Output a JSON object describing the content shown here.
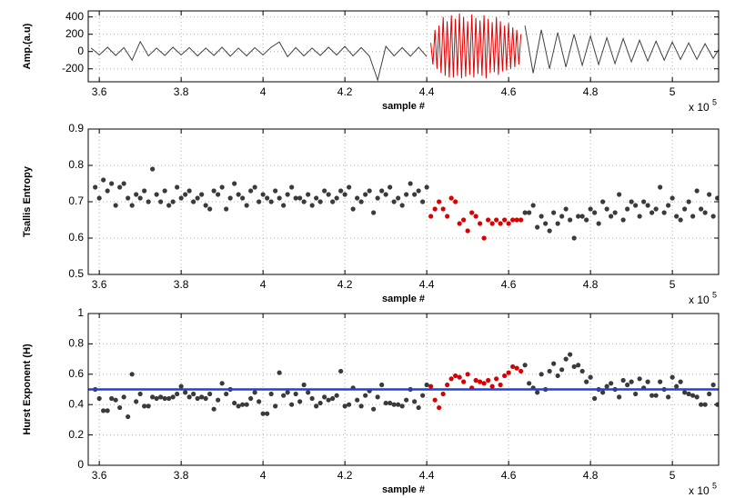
{
  "chart_data": [
    {
      "type": "line",
      "ylabel": "Amp.(a.u)",
      "xlabel": "sample #",
      "x_multiplier": "x 10",
      "x_multiplier_exp": "5",
      "xlim": [
        357300,
        511300
      ],
      "xticks": [
        {
          "value": 360000,
          "label": "3.6"
        },
        {
          "value": 380000,
          "label": "3.8"
        },
        {
          "value": 400000,
          "label": "4"
        },
        {
          "value": 420000,
          "label": "4.2"
        },
        {
          "value": 440000,
          "label": "4.4"
        },
        {
          "value": 460000,
          "label": "4.6"
        },
        {
          "value": 480000,
          "label": "4.8"
        },
        {
          "value": 500000,
          "label": "5"
        }
      ],
      "ylim": [
        -350,
        470
      ],
      "yticks": [
        -200,
        0,
        200,
        400
      ],
      "grid": true,
      "series": [
        {
          "color": "#404040",
          "x": [
            358000,
            360000,
            362000,
            364000,
            366000,
            368000,
            370000,
            372000,
            374000,
            376000,
            378000,
            380000,
            382000,
            384000,
            386000,
            388000,
            390000,
            392000,
            394000,
            396000,
            398000,
            400000,
            402000,
            404000,
            406000,
            408000,
            410000,
            412000,
            414000,
            416000,
            418000,
            420000,
            422000,
            424000,
            426000,
            428000,
            430000,
            432000,
            434000,
            436000,
            438000,
            440000,
            442000,
            444000,
            446000,
            448000,
            450000,
            452000,
            454000,
            456000,
            458000,
            460000,
            462000,
            464000,
            466000,
            468000,
            470000,
            472000,
            474000,
            476000,
            478000,
            480000,
            482000,
            484000,
            486000,
            488000,
            490000,
            492000,
            494000,
            496000,
            498000,
            500000,
            502000,
            504000,
            506000,
            508000,
            510000,
            512000
          ],
          "values": [
            40,
            -40,
            50,
            -45,
            45,
            -100,
            115,
            -50,
            40,
            -45,
            50,
            -40,
            45,
            -50,
            40,
            -45,
            50,
            -55,
            40,
            -50,
            45,
            -40,
            50,
            110,
            -60,
            45,
            -50,
            40,
            -45,
            50,
            -40,
            60,
            -50,
            45,
            -55,
            -330,
            60,
            -50,
            45,
            -55,
            50,
            -60,
            null,
            null,
            null,
            null,
            null,
            null,
            null,
            null,
            null,
            null,
            null,
            300,
            -250,
            250,
            -200,
            220,
            -180,
            200,
            -160,
            180,
            -150,
            160,
            -140,
            150,
            -120,
            130,
            -110,
            120,
            -100,
            110,
            -90,
            100,
            -90,
            90,
            -80,
            80
          ]
        },
        {
          "color": "#e00000",
          "x": [
            441000,
            441500,
            442000,
            442500,
            443000,
            443500,
            444000,
            444500,
            445000,
            445500,
            446000,
            446500,
            447000,
            447500,
            448000,
            448500,
            449000,
            449500,
            450000,
            450500,
            451000,
            451500,
            452000,
            452500,
            453000,
            453500,
            454000,
            454500,
            455000,
            455500,
            456000,
            456500,
            457000,
            457500,
            458000,
            458500,
            459000,
            459500,
            460000,
            460500,
            461000,
            461500,
            462000,
            462500,
            463000
          ],
          "values": [
            100,
            -150,
            250,
            -200,
            300,
            -250,
            400,
            -280,
            350,
            -300,
            420,
            -300,
            380,
            -280,
            440,
            -310,
            400,
            -290,
            350,
            -270,
            430,
            -300,
            390,
            -260,
            360,
            -280,
            420,
            -310,
            380,
            -250,
            340,
            -240,
            400,
            -270,
            350,
            -230,
            300,
            -220,
            330,
            -200,
            280,
            -180,
            250,
            -150,
            200
          ]
        }
      ]
    },
    {
      "type": "scatter",
      "ylabel": "Tsallis Entropy",
      "xlabel": "sample #",
      "x_multiplier": "x 10",
      "x_multiplier_exp": "5",
      "xlim": [
        357300,
        511300
      ],
      "xticks": [
        {
          "value": 360000,
          "label": "3.6"
        },
        {
          "value": 380000,
          "label": "3.8"
        },
        {
          "value": 400000,
          "label": "4"
        },
        {
          "value": 420000,
          "label": "4.2"
        },
        {
          "value": 440000,
          "label": "4.4"
        },
        {
          "value": 460000,
          "label": "4.6"
        },
        {
          "value": 480000,
          "label": "4.8"
        },
        {
          "value": 500000,
          "label": "5"
        }
      ],
      "ylim": [
        0.5,
        0.9
      ],
      "yticks": [
        0.5,
        0.6,
        0.7,
        0.8,
        0.9
      ],
      "grid": true,
      "color": "#3a3a3a",
      "highlight": {
        "xlim": [
          441000,
          463000
        ],
        "color": "#d80000"
      },
      "x": [
        359000,
        360000,
        361000,
        362000,
        363000,
        364000,
        365000,
        366000,
        367000,
        368000,
        369000,
        370000,
        371000,
        372000,
        373000,
        374000,
        375000,
        376000,
        377000,
        378000,
        379000,
        380000,
        381000,
        382000,
        383000,
        384000,
        385000,
        386000,
        387000,
        388000,
        389000,
        390000,
        391000,
        392000,
        393000,
        394000,
        395000,
        396000,
        397000,
        398000,
        399000,
        400000,
        401000,
        402000,
        403000,
        404000,
        405000,
        406000,
        407000,
        408000,
        409000,
        410000,
        411000,
        412000,
        413000,
        414000,
        415000,
        416000,
        417000,
        418000,
        419000,
        420000,
        421000,
        422000,
        423000,
        424000,
        425000,
        426000,
        427000,
        428000,
        429000,
        430000,
        431000,
        432000,
        433000,
        434000,
        435000,
        436000,
        437000,
        438000,
        439000,
        440000,
        441000,
        442000,
        443000,
        444000,
        445000,
        446000,
        447000,
        448000,
        449000,
        450000,
        451000,
        452000,
        453000,
        454000,
        455000,
        456000,
        457000,
        458000,
        459000,
        460000,
        461000,
        462000,
        463000,
        464000,
        465000,
        466000,
        467000,
        468000,
        469000,
        470000,
        471000,
        472000,
        473000,
        474000,
        475000,
        476000,
        477000,
        478000,
        479000,
        480000,
        481000,
        482000,
        483000,
        484000,
        485000,
        486000,
        487000,
        488000,
        489000,
        490000,
        491000,
        492000,
        493000,
        494000,
        495000,
        496000,
        497000,
        498000,
        499000,
        500000,
        501000,
        502000,
        503000,
        504000,
        505000,
        506000,
        507000,
        508000,
        509000,
        510000,
        511000
      ],
      "values": [
        0.74,
        0.71,
        0.76,
        0.73,
        0.75,
        0.69,
        0.74,
        0.75,
        0.71,
        0.69,
        0.72,
        0.71,
        0.73,
        0.7,
        0.79,
        0.72,
        0.7,
        0.73,
        0.69,
        0.7,
        0.74,
        0.71,
        0.72,
        0.73,
        0.7,
        0.71,
        0.72,
        0.69,
        0.68,
        0.73,
        0.72,
        0.74,
        0.68,
        0.71,
        0.75,
        0.72,
        0.71,
        0.69,
        0.73,
        0.74,
        0.7,
        0.72,
        0.71,
        0.7,
        0.73,
        0.71,
        0.69,
        0.72,
        0.74,
        0.71,
        0.71,
        0.7,
        0.72,
        0.69,
        0.71,
        0.7,
        0.73,
        0.72,
        0.7,
        0.71,
        0.73,
        0.72,
        0.74,
        0.68,
        0.71,
        0.7,
        0.72,
        0.73,
        0.67,
        0.71,
        0.73,
        0.72,
        0.74,
        0.7,
        0.71,
        0.69,
        0.72,
        0.75,
        0.72,
        0.73,
        0.7,
        0.74,
        0.66,
        0.68,
        0.7,
        0.68,
        0.66,
        0.71,
        0.7,
        0.64,
        0.65,
        0.62,
        0.67,
        0.66,
        0.64,
        0.6,
        0.65,
        0.64,
        0.65,
        0.64,
        0.65,
        0.64,
        0.65,
        0.65,
        0.65,
        0.67,
        0.67,
        0.69,
        0.63,
        0.66,
        0.64,
        0.62,
        0.67,
        0.64,
        0.66,
        0.68,
        0.65,
        0.6,
        0.66,
        0.66,
        0.65,
        0.68,
        0.67,
        0.64,
        0.7,
        0.68,
        0.66,
        0.67,
        0.72,
        0.65,
        0.68,
        0.7,
        0.69,
        0.66,
        0.7,
        0.69,
        0.67,
        0.68,
        0.74,
        0.67,
        0.69,
        0.71,
        0.66,
        0.65,
        0.68,
        0.7,
        0.66,
        0.73,
        0.68,
        0.67,
        0.72,
        0.66,
        0.71
      ]
    },
    {
      "type": "scatter",
      "ylabel": "Hurst Exponent (H)",
      "xlabel": "sample #",
      "x_multiplier": "x 10",
      "x_multiplier_exp": "5",
      "xlim": [
        357300,
        511300
      ],
      "xticks": [
        {
          "value": 360000,
          "label": "3.6"
        },
        {
          "value": 380000,
          "label": "3.8"
        },
        {
          "value": 400000,
          "label": "4"
        },
        {
          "value": 420000,
          "label": "4.2"
        },
        {
          "value": 440000,
          "label": "4.4"
        },
        {
          "value": 460000,
          "label": "4.6"
        },
        {
          "value": 480000,
          "label": "4.8"
        },
        {
          "value": 500000,
          "label": "5"
        }
      ],
      "ylim": [
        0,
        1
      ],
      "yticks": [
        0,
        0.2,
        0.4,
        0.6,
        0.8,
        1
      ],
      "grid": true,
      "color": "#3a3a3a",
      "highlight": {
        "xlim": [
          441000,
          463000
        ],
        "color": "#d80000"
      },
      "hline": {
        "value": 0.5,
        "color": "#2040e0"
      },
      "x": [
        359000,
        360000,
        361000,
        362000,
        363000,
        364000,
        365000,
        366000,
        367000,
        368000,
        369000,
        370000,
        371000,
        372000,
        373000,
        374000,
        375000,
        376000,
        377000,
        378000,
        379000,
        380000,
        381000,
        382000,
        383000,
        384000,
        385000,
        386000,
        387000,
        388000,
        389000,
        390000,
        391000,
        392000,
        393000,
        394000,
        395000,
        396000,
        397000,
        398000,
        399000,
        400000,
        401000,
        402000,
        403000,
        404000,
        405000,
        406000,
        407000,
        408000,
        409000,
        410000,
        411000,
        412000,
        413000,
        414000,
        415000,
        416000,
        417000,
        418000,
        419000,
        420000,
        421000,
        422000,
        423000,
        424000,
        425000,
        426000,
        427000,
        428000,
        429000,
        430000,
        431000,
        432000,
        433000,
        434000,
        435000,
        436000,
        437000,
        438000,
        439000,
        440000,
        441000,
        442000,
        443000,
        444000,
        445000,
        446000,
        447000,
        448000,
        449000,
        450000,
        451000,
        452000,
        453000,
        454000,
        455000,
        456000,
        457000,
        458000,
        459000,
        460000,
        461000,
        462000,
        463000,
        464000,
        465000,
        466000,
        467000,
        468000,
        469000,
        470000,
        471000,
        472000,
        473000,
        474000,
        475000,
        476000,
        477000,
        478000,
        479000,
        480000,
        481000,
        482000,
        483000,
        484000,
        485000,
        486000,
        487000,
        488000,
        489000,
        490000,
        491000,
        492000,
        493000,
        494000,
        495000,
        496000,
        497000,
        498000,
        499000,
        500000,
        501000,
        502000,
        503000,
        504000,
        505000,
        506000,
        507000,
        508000,
        509000,
        510000,
        511000
      ],
      "values": [
        0.5,
        0.44,
        0.36,
        0.36,
        0.44,
        0.43,
        0.38,
        0.45,
        0.32,
        0.6,
        0.42,
        0.47,
        0.39,
        0.39,
        0.45,
        0.44,
        0.45,
        0.44,
        0.44,
        0.45,
        0.47,
        0.52,
        0.48,
        0.45,
        0.47,
        0.44,
        0.45,
        0.44,
        0.47,
        0.37,
        0.43,
        0.54,
        0.47,
        0.5,
        0.41,
        0.39,
        0.4,
        0.4,
        0.44,
        0.48,
        0.42,
        0.34,
        0.34,
        0.47,
        0.39,
        0.61,
        0.46,
        0.48,
        0.4,
        0.47,
        0.42,
        0.53,
        0.48,
        0.44,
        0.39,
        0.41,
        0.45,
        0.43,
        0.44,
        0.46,
        0.62,
        0.39,
        0.4,
        0.51,
        0.43,
        0.39,
        0.46,
        0.49,
        0.37,
        0.45,
        0.53,
        0.41,
        0.41,
        0.4,
        0.4,
        0.39,
        0.43,
        0.5,
        0.42,
        0.38,
        0.46,
        0.53,
        0.52,
        0.43,
        0.38,
        0.47,
        0.53,
        0.57,
        0.59,
        0.58,
        0.55,
        0.6,
        0.51,
        0.56,
        0.55,
        0.54,
        0.56,
        0.52,
        0.57,
        0.53,
        0.59,
        0.61,
        0.65,
        0.64,
        0.62,
        0.66,
        0.54,
        0.51,
        0.48,
        0.6,
        0.5,
        0.62,
        0.67,
        0.59,
        0.63,
        0.7,
        0.73,
        0.65,
        0.66,
        0.62,
        0.55,
        0.58,
        0.44,
        0.5,
        0.48,
        0.52,
        0.54,
        0.5,
        0.45,
        0.56,
        0.53,
        0.55,
        0.47,
        0.57,
        0.51,
        0.55,
        0.46,
        0.46,
        0.55,
        0.5,
        0.45,
        0.58,
        0.52,
        0.55,
        0.48,
        0.47,
        0.46,
        0.45,
        0.4,
        0.4,
        0.47,
        0.53,
        0.4
      ]
    }
  ]
}
